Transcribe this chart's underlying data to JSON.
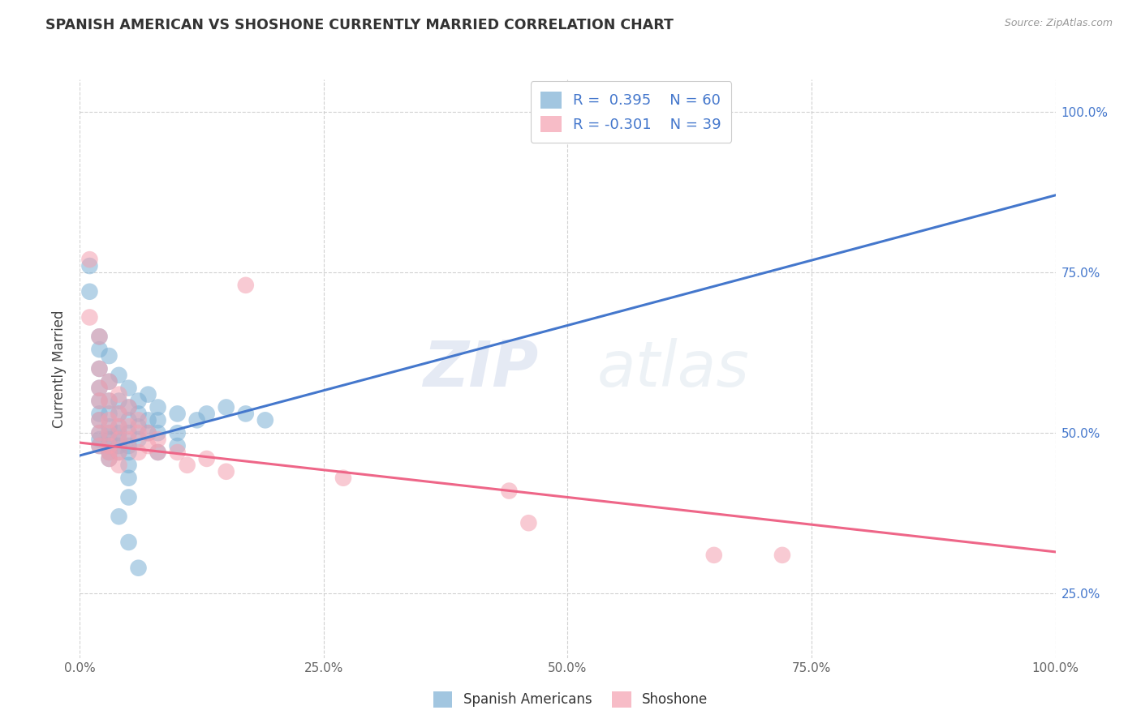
{
  "title": "SPANISH AMERICAN VS SHOSHONE CURRENTLY MARRIED CORRELATION CHART",
  "source": "Source: ZipAtlas.com",
  "ylabel": "Currently Married",
  "watermark": "ZIPatlas",
  "xlim": [
    0.0,
    1.0
  ],
  "ylim": [
    0.15,
    1.05
  ],
  "xticks": [
    0.0,
    0.25,
    0.5,
    0.75,
    1.0
  ],
  "yticks_right": [
    0.25,
    0.5,
    0.75,
    1.0
  ],
  "xticklabels": [
    "0.0%",
    "25.0%",
    "50.0%",
    "75.0%",
    "100.0%"
  ],
  "yticklabels_right": [
    "25.0%",
    "50.0%",
    "75.0%",
    "100.0%"
  ],
  "blue_color": "#7BAFD4",
  "pink_color": "#F4A0B0",
  "line_blue": "#4477CC",
  "line_pink": "#EE6688",
  "blue_scatter": [
    [
      0.01,
      0.76
    ],
    [
      0.01,
      0.72
    ],
    [
      0.02,
      0.65
    ],
    [
      0.02,
      0.63
    ],
    [
      0.02,
      0.6
    ],
    [
      0.02,
      0.57
    ],
    [
      0.02,
      0.55
    ],
    [
      0.02,
      0.53
    ],
    [
      0.02,
      0.52
    ],
    [
      0.02,
      0.5
    ],
    [
      0.02,
      0.49
    ],
    [
      0.02,
      0.48
    ],
    [
      0.03,
      0.62
    ],
    [
      0.03,
      0.58
    ],
    [
      0.03,
      0.55
    ],
    [
      0.03,
      0.53
    ],
    [
      0.03,
      0.51
    ],
    [
      0.03,
      0.5
    ],
    [
      0.03,
      0.49
    ],
    [
      0.03,
      0.48
    ],
    [
      0.03,
      0.47
    ],
    [
      0.03,
      0.46
    ],
    [
      0.04,
      0.59
    ],
    [
      0.04,
      0.55
    ],
    [
      0.04,
      0.53
    ],
    [
      0.04,
      0.51
    ],
    [
      0.04,
      0.5
    ],
    [
      0.04,
      0.49
    ],
    [
      0.04,
      0.48
    ],
    [
      0.04,
      0.47
    ],
    [
      0.05,
      0.57
    ],
    [
      0.05,
      0.54
    ],
    [
      0.05,
      0.52
    ],
    [
      0.05,
      0.5
    ],
    [
      0.05,
      0.48
    ],
    [
      0.05,
      0.47
    ],
    [
      0.05,
      0.45
    ],
    [
      0.05,
      0.43
    ],
    [
      0.05,
      0.4
    ],
    [
      0.06,
      0.55
    ],
    [
      0.06,
      0.53
    ],
    [
      0.06,
      0.51
    ],
    [
      0.06,
      0.49
    ],
    [
      0.07,
      0.56
    ],
    [
      0.07,
      0.52
    ],
    [
      0.07,
      0.5
    ],
    [
      0.08,
      0.54
    ],
    [
      0.08,
      0.52
    ],
    [
      0.08,
      0.5
    ],
    [
      0.08,
      0.47
    ],
    [
      0.1,
      0.53
    ],
    [
      0.1,
      0.5
    ],
    [
      0.1,
      0.48
    ],
    [
      0.12,
      0.52
    ],
    [
      0.13,
      0.53
    ],
    [
      0.15,
      0.54
    ],
    [
      0.17,
      0.53
    ],
    [
      0.19,
      0.52
    ],
    [
      0.04,
      0.37
    ],
    [
      0.05,
      0.33
    ],
    [
      0.06,
      0.29
    ]
  ],
  "pink_scatter": [
    [
      0.01,
      0.77
    ],
    [
      0.01,
      0.68
    ],
    [
      0.02,
      0.65
    ],
    [
      0.02,
      0.6
    ],
    [
      0.02,
      0.57
    ],
    [
      0.02,
      0.55
    ],
    [
      0.02,
      0.52
    ],
    [
      0.02,
      0.5
    ],
    [
      0.02,
      0.48
    ],
    [
      0.03,
      0.58
    ],
    [
      0.03,
      0.55
    ],
    [
      0.03,
      0.52
    ],
    [
      0.03,
      0.5
    ],
    [
      0.03,
      0.48
    ],
    [
      0.03,
      0.47
    ],
    [
      0.03,
      0.46
    ],
    [
      0.04,
      0.56
    ],
    [
      0.04,
      0.53
    ],
    [
      0.04,
      0.51
    ],
    [
      0.04,
      0.49
    ],
    [
      0.04,
      0.47
    ],
    [
      0.04,
      0.45
    ],
    [
      0.05,
      0.54
    ],
    [
      0.05,
      0.51
    ],
    [
      0.05,
      0.49
    ],
    [
      0.06,
      0.52
    ],
    [
      0.06,
      0.5
    ],
    [
      0.06,
      0.47
    ],
    [
      0.07,
      0.5
    ],
    [
      0.07,
      0.48
    ],
    [
      0.08,
      0.49
    ],
    [
      0.08,
      0.47
    ],
    [
      0.1,
      0.47
    ],
    [
      0.11,
      0.45
    ],
    [
      0.13,
      0.46
    ],
    [
      0.15,
      0.44
    ],
    [
      0.17,
      0.73
    ],
    [
      0.27,
      0.43
    ],
    [
      0.44,
      0.41
    ],
    [
      0.46,
      0.36
    ],
    [
      0.65,
      0.31
    ],
    [
      0.72,
      0.31
    ]
  ],
  "blue_line": [
    [
      0.0,
      0.465
    ],
    [
      1.0,
      0.87
    ]
  ],
  "pink_line": [
    [
      0.0,
      0.485
    ],
    [
      1.0,
      0.315
    ]
  ]
}
